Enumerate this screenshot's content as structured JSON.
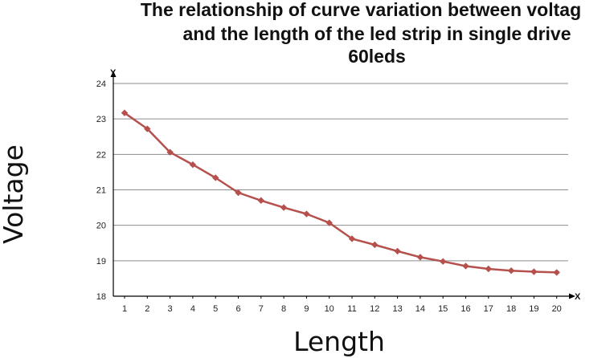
{
  "chart_data": {
    "type": "line",
    "title_lines": [
      "The relationship of curve variation between voltag",
      "and the length of the led strip in single drive",
      "60leds"
    ],
    "xlabel": "Length",
    "ylabel": "Voltage",
    "x_axis_letter": "X",
    "y_axis_letter": "Y",
    "categories": [
      "1",
      "2",
      "3",
      "4",
      "5",
      "6",
      "7",
      "8",
      "9",
      "10",
      "11",
      "12",
      "13",
      "14",
      "15",
      "16",
      "17",
      "18",
      "19",
      "20"
    ],
    "x": [
      1,
      2,
      3,
      4,
      5,
      6,
      7,
      8,
      9,
      10,
      11,
      12,
      13,
      14,
      15,
      16,
      17,
      18,
      19,
      20
    ],
    "series": [
      {
        "values": [
          23.17,
          22.72,
          22.06,
          21.71,
          21.34,
          20.92,
          20.7,
          20.5,
          20.32,
          20.07,
          19.62,
          19.45,
          19.27,
          19.1,
          18.98,
          18.85,
          18.77,
          18.72,
          18.69,
          18.67
        ],
        "color": "#b5504d",
        "marker": "diamond"
      }
    ],
    "yticks": [
      "18",
      "19",
      "20",
      "21",
      "22",
      "23",
      "24"
    ],
    "ylim": [
      18,
      24
    ],
    "grid": "horizontal",
    "legend": "none"
  }
}
